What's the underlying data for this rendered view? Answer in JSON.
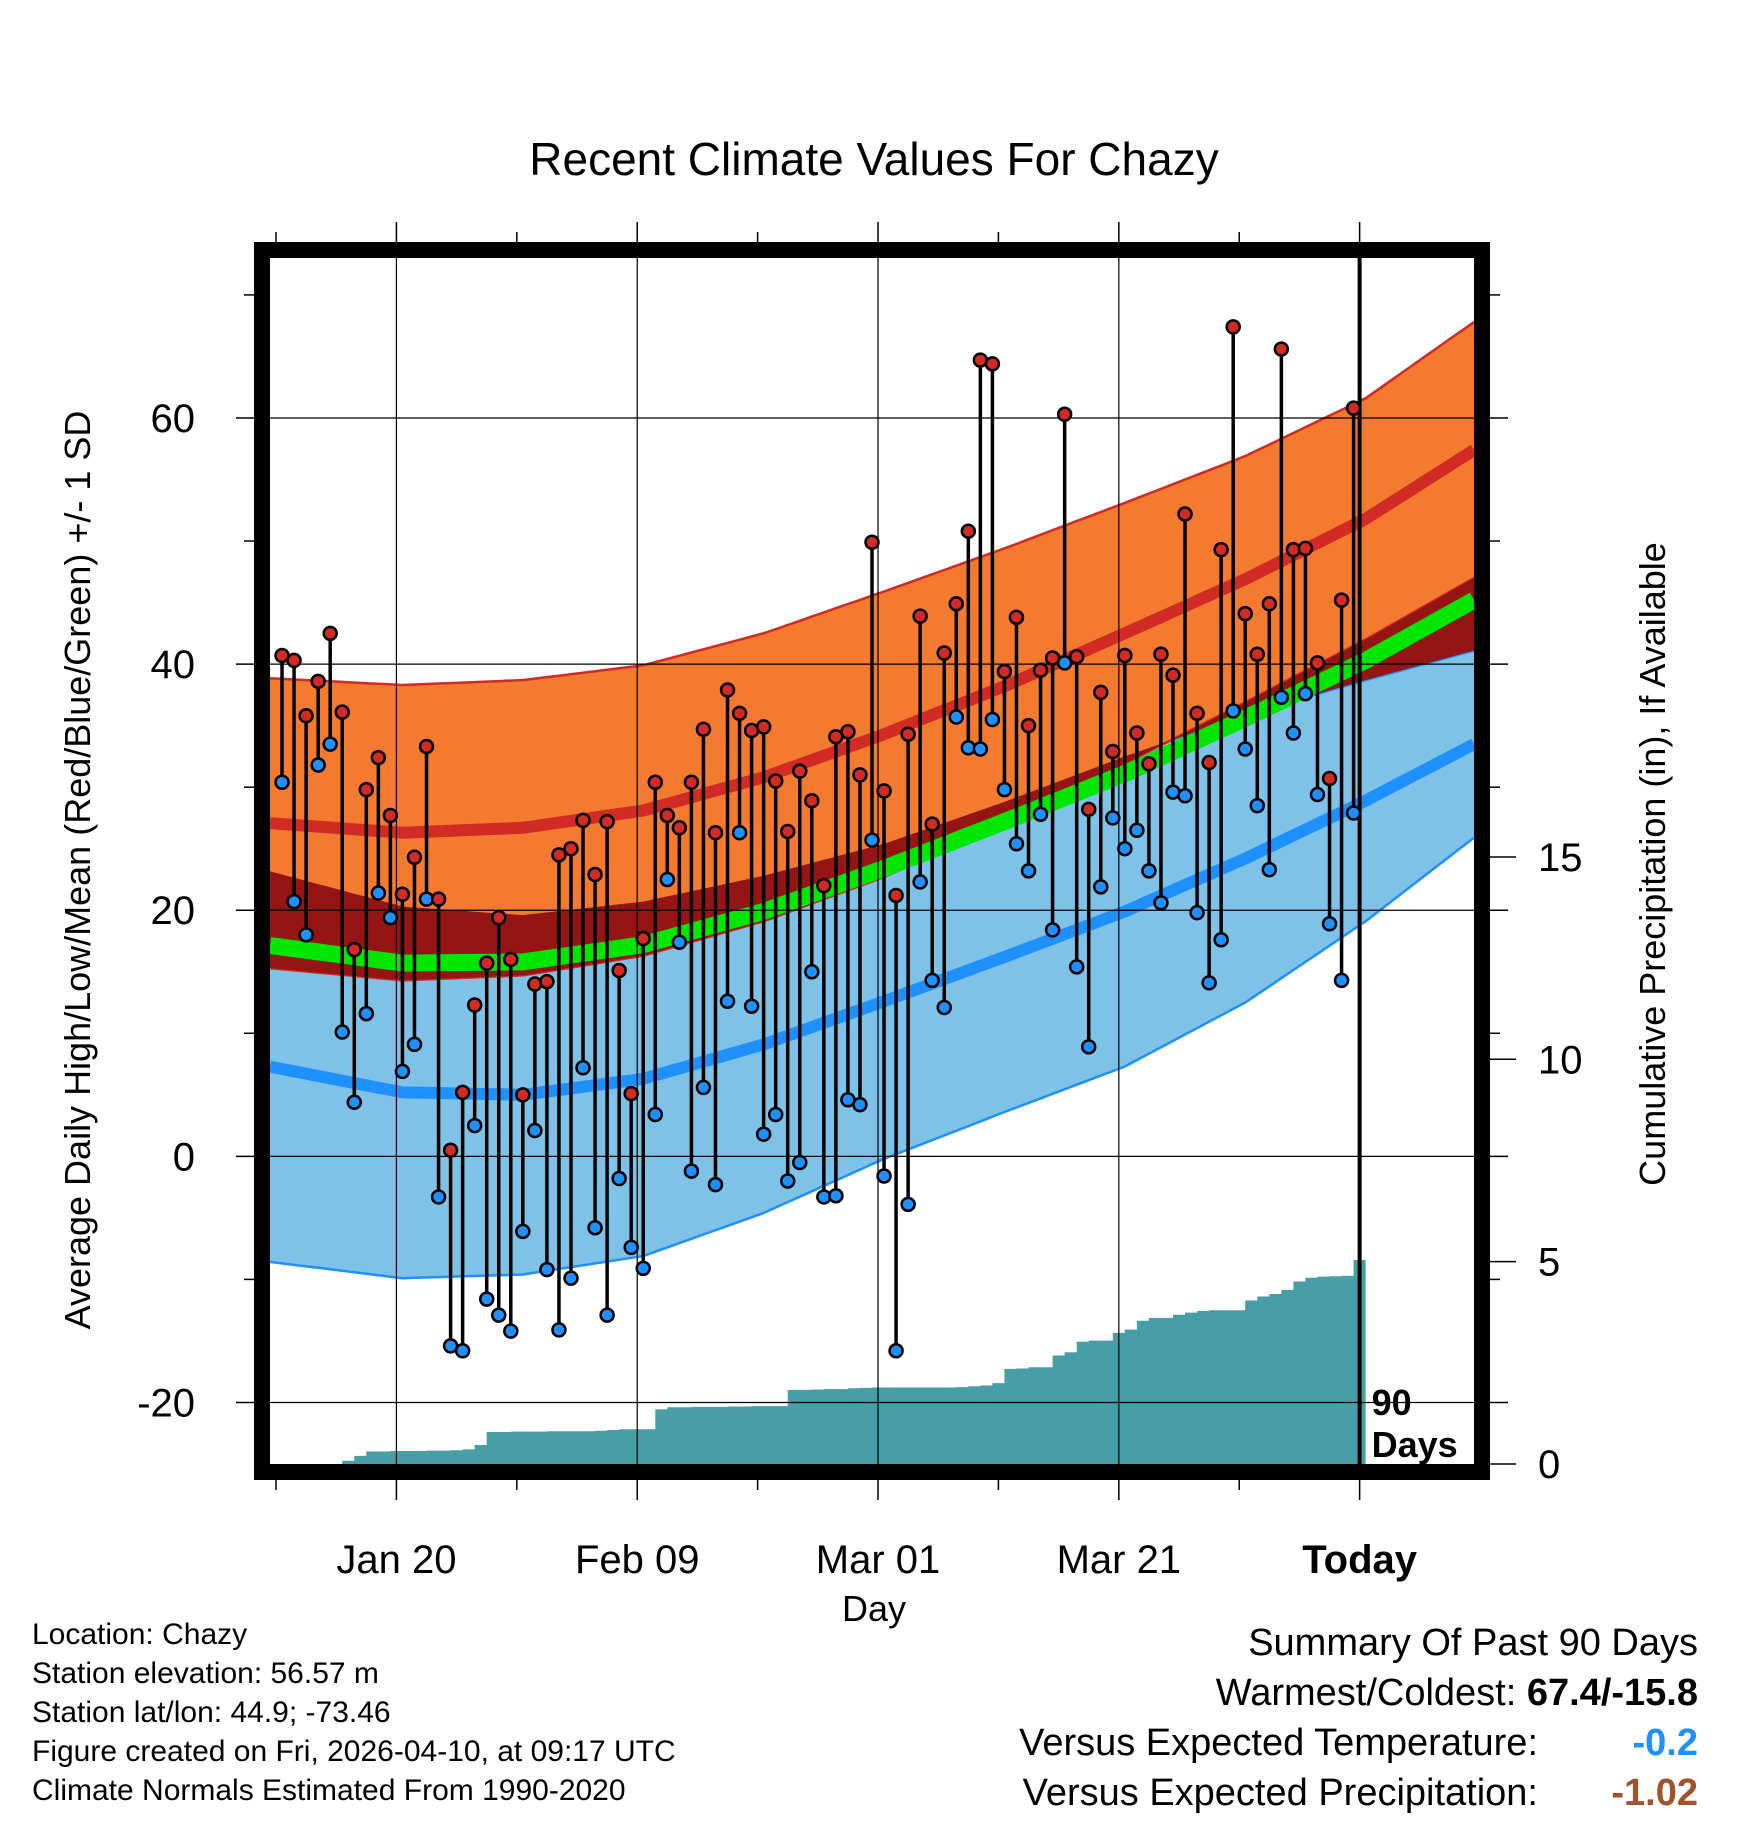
{
  "chart_data": {
    "type": "line",
    "title": "Recent Climate Values For Chazy",
    "xlabel": "Day",
    "ylabel": "Average Daily High/Low/Mean (Red/Blue/Green) +/- 1 SD",
    "y2label": "Cumulative Precipitation (in), If Available",
    "x_tick_labels": [
      "Jan 20",
      "Feb 09",
      "Mar 01",
      "Mar 21",
      "Today"
    ],
    "x_tick_days": [
      9.5,
      29.5,
      49.5,
      69.5,
      89.5
    ],
    "xlim": [
      -1,
      99
    ],
    "ylim": [
      -25,
      73
    ],
    "y_ticks": [
      -20,
      0,
      20,
      40,
      60
    ],
    "y2lim": [
      0,
      29.8
    ],
    "y2_ticks": [
      0,
      5,
      10,
      15
    ],
    "today_label": "90\nDays",
    "normals_days": [
      0,
      10,
      20,
      30,
      40,
      50,
      60,
      70,
      80,
      90,
      99
    ],
    "normal_high": [
      27.0,
      26.3,
      26.7,
      28.1,
      30.8,
      34.3,
      38.2,
      42.5,
      46.9,
      51.8,
      57.4
    ],
    "normal_high_sd": [
      11.8,
      12.0,
      12.0,
      11.8,
      11.7,
      11.6,
      11.2,
      10.6,
      10.0,
      9.8,
      10.4
    ],
    "normal_low": [
      7.1,
      5.2,
      5.0,
      6.3,
      9.1,
      12.6,
      16.2,
      19.9,
      24.2,
      28.9,
      33.5
    ],
    "normal_low_sd": [
      15.8,
      15.1,
      14.6,
      14.4,
      13.7,
      12.8,
      12.6,
      12.6,
      11.7,
      9.8,
      7.6
    ],
    "normal_mean": [
      17.0,
      15.7,
      15.8,
      17.2,
      19.9,
      23.4,
      27.2,
      31.1,
      35.6,
      40.3,
      45.2
    ],
    "daily_high": [
      40.7,
      40.3,
      35.8,
      38.6,
      42.5,
      36.1,
      16.8,
      29.8,
      32.4,
      27.7,
      21.3,
      24.3,
      33.3,
      20.9,
      0.5,
      5.2,
      12.3,
      15.7,
      19.4,
      16.0,
      5.0,
      14.0,
      14.2,
      24.5,
      25.0,
      27.3,
      22.9,
      27.2,
      15.1,
      5.1,
      17.7,
      30.4,
      27.7,
      26.7,
      30.4,
      34.7,
      26.3,
      37.9,
      36.0,
      34.6,
      34.9,
      30.5,
      26.4,
      31.3,
      28.9,
      22.0,
      34.1,
      34.5,
      31.0,
      49.9,
      29.7,
      21.2,
      34.3,
      43.9,
      27.0,
      40.9,
      44.9,
      50.8,
      64.7,
      64.4,
      39.4,
      43.8,
      35.0,
      39.5,
      40.5,
      60.3,
      40.6,
      28.2,
      37.7,
      32.9,
      40.7,
      34.4,
      31.9,
      40.8,
      39.1,
      52.2,
      36.0,
      32.0,
      49.3,
      67.4,
      44.1,
      40.8,
      44.9,
      65.6,
      49.3,
      49.4,
      40.1,
      30.7,
      45.2,
      60.8
    ],
    "daily_low": [
      30.4,
      20.7,
      18.0,
      31.8,
      33.5,
      10.1,
      4.4,
      11.6,
      21.4,
      19.4,
      6.9,
      9.1,
      20.9,
      -3.3,
      -15.4,
      -15.8,
      2.5,
      -11.6,
      -12.9,
      -14.2,
      -6.1,
      2.1,
      -9.2,
      -14.1,
      -9.9,
      7.2,
      -5.8,
      -12.9,
      -1.8,
      -7.4,
      -9.1,
      3.4,
      22.5,
      17.4,
      -1.2,
      5.6,
      -2.3,
      12.6,
      26.3,
      12.2,
      1.8,
      3.4,
      -2.0,
      -0.5,
      15.0,
      -3.3,
      -3.2,
      4.6,
      4.2,
      25.7,
      -1.6,
      -15.8,
      -3.9,
      22.3,
      14.3,
      12.1,
      35.7,
      33.2,
      33.1,
      35.5,
      29.8,
      25.4,
      23.2,
      27.8,
      18.4,
      40.1,
      15.4,
      8.9,
      21.9,
      27.5,
      25.0,
      26.5,
      23.2,
      20.6,
      29.6,
      29.3,
      19.8,
      14.1,
      17.6,
      36.2,
      33.1,
      28.5,
      23.3,
      37.3,
      34.4,
      37.6,
      29.4,
      18.9,
      14.3,
      27.9
    ],
    "cum_precip": [
      0.0,
      0.0,
      0.0,
      0.0,
      0.0,
      0.08,
      0.2,
      0.31,
      0.31,
      0.32,
      0.32,
      0.32,
      0.33,
      0.33,
      0.34,
      0.36,
      0.47,
      0.79,
      0.79,
      0.8,
      0.8,
      0.8,
      0.81,
      0.81,
      0.81,
      0.81,
      0.82,
      0.84,
      0.86,
      0.86,
      0.86,
      1.35,
      1.4,
      1.4,
      1.41,
      1.41,
      1.41,
      1.42,
      1.42,
      1.43,
      1.43,
      1.43,
      1.83,
      1.83,
      1.84,
      1.85,
      1.85,
      1.87,
      1.88,
      1.89,
      1.89,
      1.89,
      1.89,
      1.89,
      1.89,
      1.89,
      1.9,
      1.92,
      1.94,
      2.0,
      2.35,
      2.36,
      2.39,
      2.39,
      2.68,
      2.76,
      3.02,
      3.05,
      3.05,
      3.24,
      3.32,
      3.54,
      3.61,
      3.61,
      3.69,
      3.74,
      3.78,
      3.8,
      3.8,
      3.8,
      4.04,
      4.14,
      4.2,
      4.3,
      4.51,
      4.6,
      4.63,
      4.64,
      4.65,
      5.04
    ]
  },
  "footer": {
    "location": "Location: Chazy",
    "elevation": "Station elevation: 56.57 m",
    "latlon": "Station lat/lon: 44.9; -73.46",
    "created": "Figure created on Fri, 2026-04-10, at 09:17 UTC",
    "normals": "Climate Normals Estimated From 1990-2020"
  },
  "summary": {
    "heading": "Summary Of Past 90 Days",
    "warm_cold_label": "Warmest/Coldest:",
    "warm_cold_value": "67.4/-15.8",
    "temp_label": "Versus Expected Temperature:",
    "temp_value": "-0.2",
    "temp_color": "#1e90ff",
    "precip_label": "Versus Expected Precipitation:",
    "precip_value": "-1.02",
    "precip_color": "#a0522d"
  },
  "colors": {
    "high_band": "#f47a30",
    "high_line": "#d22a24",
    "low_band": "#7fc2e8",
    "low_line": "#1e90ff",
    "overlap_band": "#951414",
    "mean_line": "#00e600",
    "precip_fill": "#489ea6",
    "high_marker": "#d22a24",
    "low_marker": "#1e90ff"
  }
}
